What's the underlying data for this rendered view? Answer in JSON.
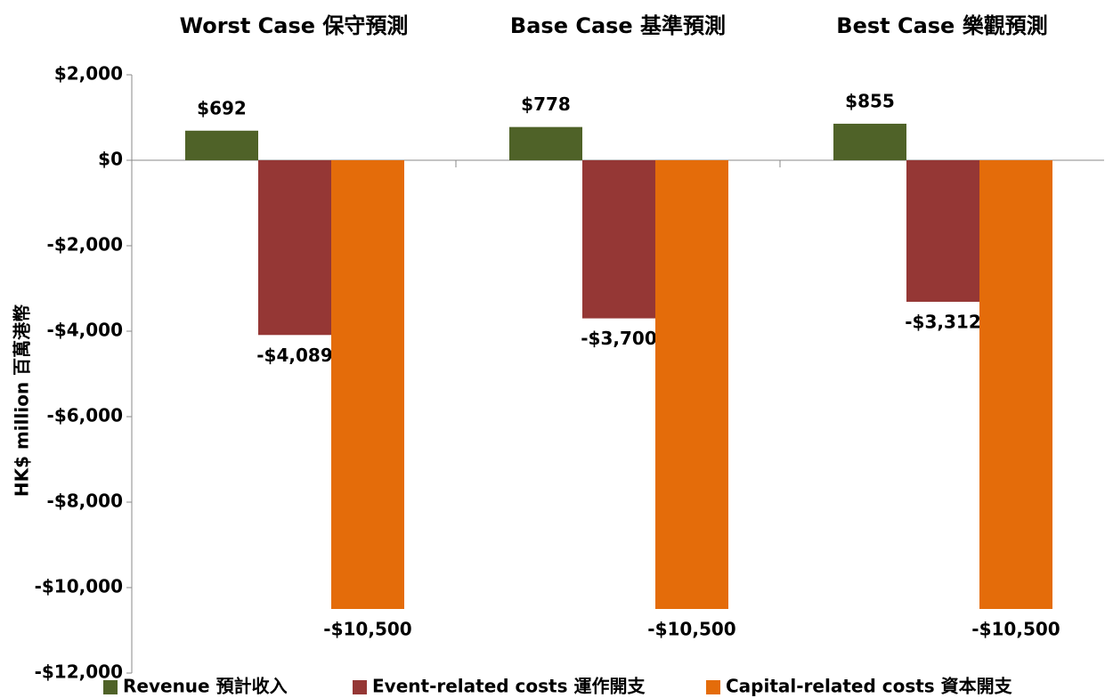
{
  "chart_data": {
    "type": "bar",
    "y_label": "HK$ million 百萬港幣",
    "categories": [
      "Worst Case 保守預測",
      "Base Case 基準預測",
      "Best Case 樂觀預測"
    ],
    "series": [
      {
        "name": "Revenue 預計收入",
        "color": "#4f6228",
        "values": [
          692,
          778,
          855
        ],
        "value_labels": [
          "$692",
          "$778",
          "$855"
        ]
      },
      {
        "name": "Event-related costs 運作開支",
        "color": "#953735",
        "values": [
          -4089,
          -3700,
          -3312
        ],
        "value_labels": [
          "-$4,089",
          "-$3,700",
          "-$3,312"
        ]
      },
      {
        "name": "Capital-related costs 資本開支",
        "color": "#e46c0a",
        "values": [
          -10500,
          -10500,
          -10500
        ],
        "value_labels": [
          "-$10,500",
          "-$10,500",
          "-$10,500"
        ]
      }
    ],
    "ylim": [
      -12000,
      2000
    ],
    "yticks": [
      {
        "value": -12000,
        "label": "-$12,000"
      },
      {
        "value": -10000,
        "label": "-$10,000"
      },
      {
        "value": -8000,
        "label": "-$8,000"
      },
      {
        "value": -6000,
        "label": "-$6,000"
      },
      {
        "value": -4000,
        "label": "-$4,000"
      },
      {
        "value": -2000,
        "label": "-$2,000"
      },
      {
        "value": 0,
        "label": "$0"
      },
      {
        "value": 2000,
        "label": "$2,000"
      }
    ],
    "legend": "bottom"
  }
}
